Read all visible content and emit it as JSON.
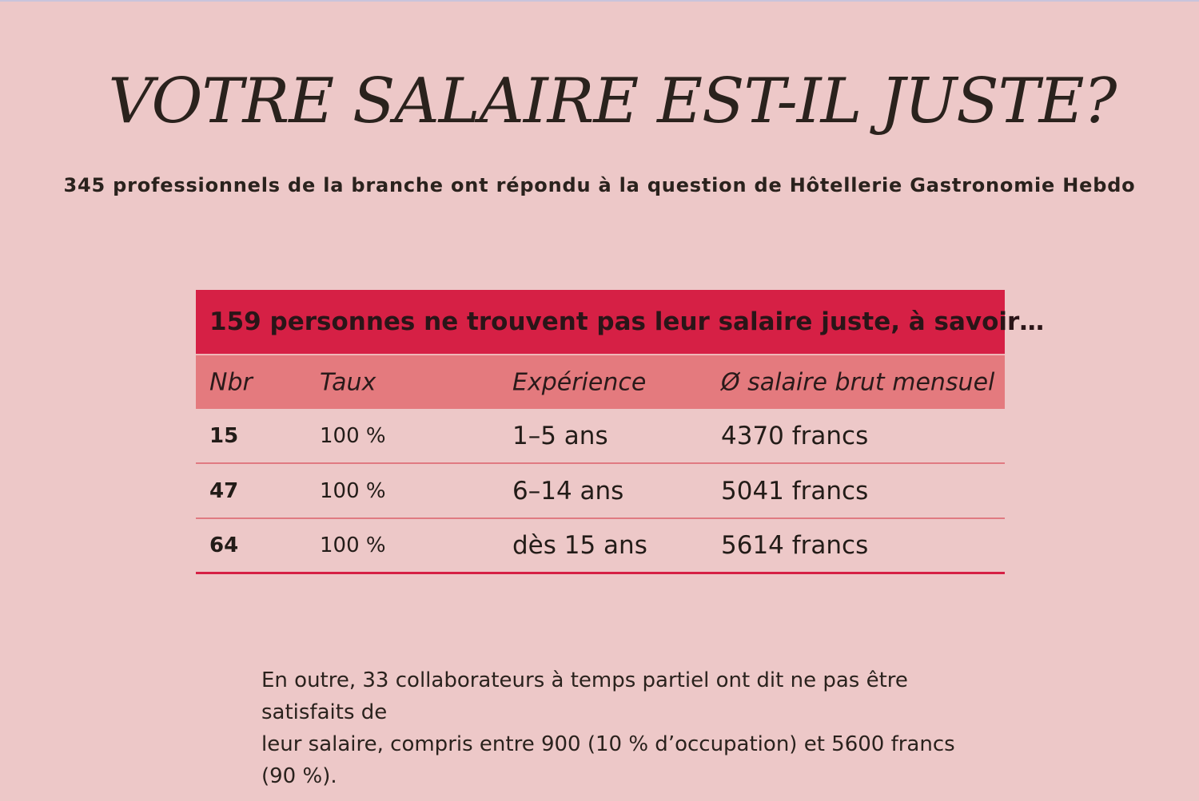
{
  "chart_data": {
    "type": "table",
    "title": "VOTRE SALAIRE EST-IL JUSTE?",
    "subtitle": "345 professionnels de la branche ont répondu à la question de Hôtellerie Gastronomie Hebdo",
    "table_heading": "159 personnes ne trouvent pas leur salaire juste, à savoir…",
    "columns": [
      "Nbr",
      "Taux",
      "Expérience",
      "Ø salaire brut mensuel"
    ],
    "rows": [
      [
        "15",
        "100 %",
        "1–5 ans",
        "4370 francs"
      ],
      [
        "47",
        "100 %",
        "6–14 ans",
        "5041 francs"
      ],
      [
        "64",
        "100 %",
        "dès 15 ans",
        "5614 francs"
      ]
    ],
    "note_lines": [
      "En outre, 33 collaborateurs à temps partiel ont dit ne pas être satisfaits de",
      "leur salaire, compris entre 900 (10 % d’occupation) et 5600 francs (90 %)."
    ]
  },
  "colors": {
    "background": "#edc8c8",
    "heading_bar": "#d62045",
    "column_header_bar": "#e47a7e",
    "row_divider": "#e07a82"
  }
}
